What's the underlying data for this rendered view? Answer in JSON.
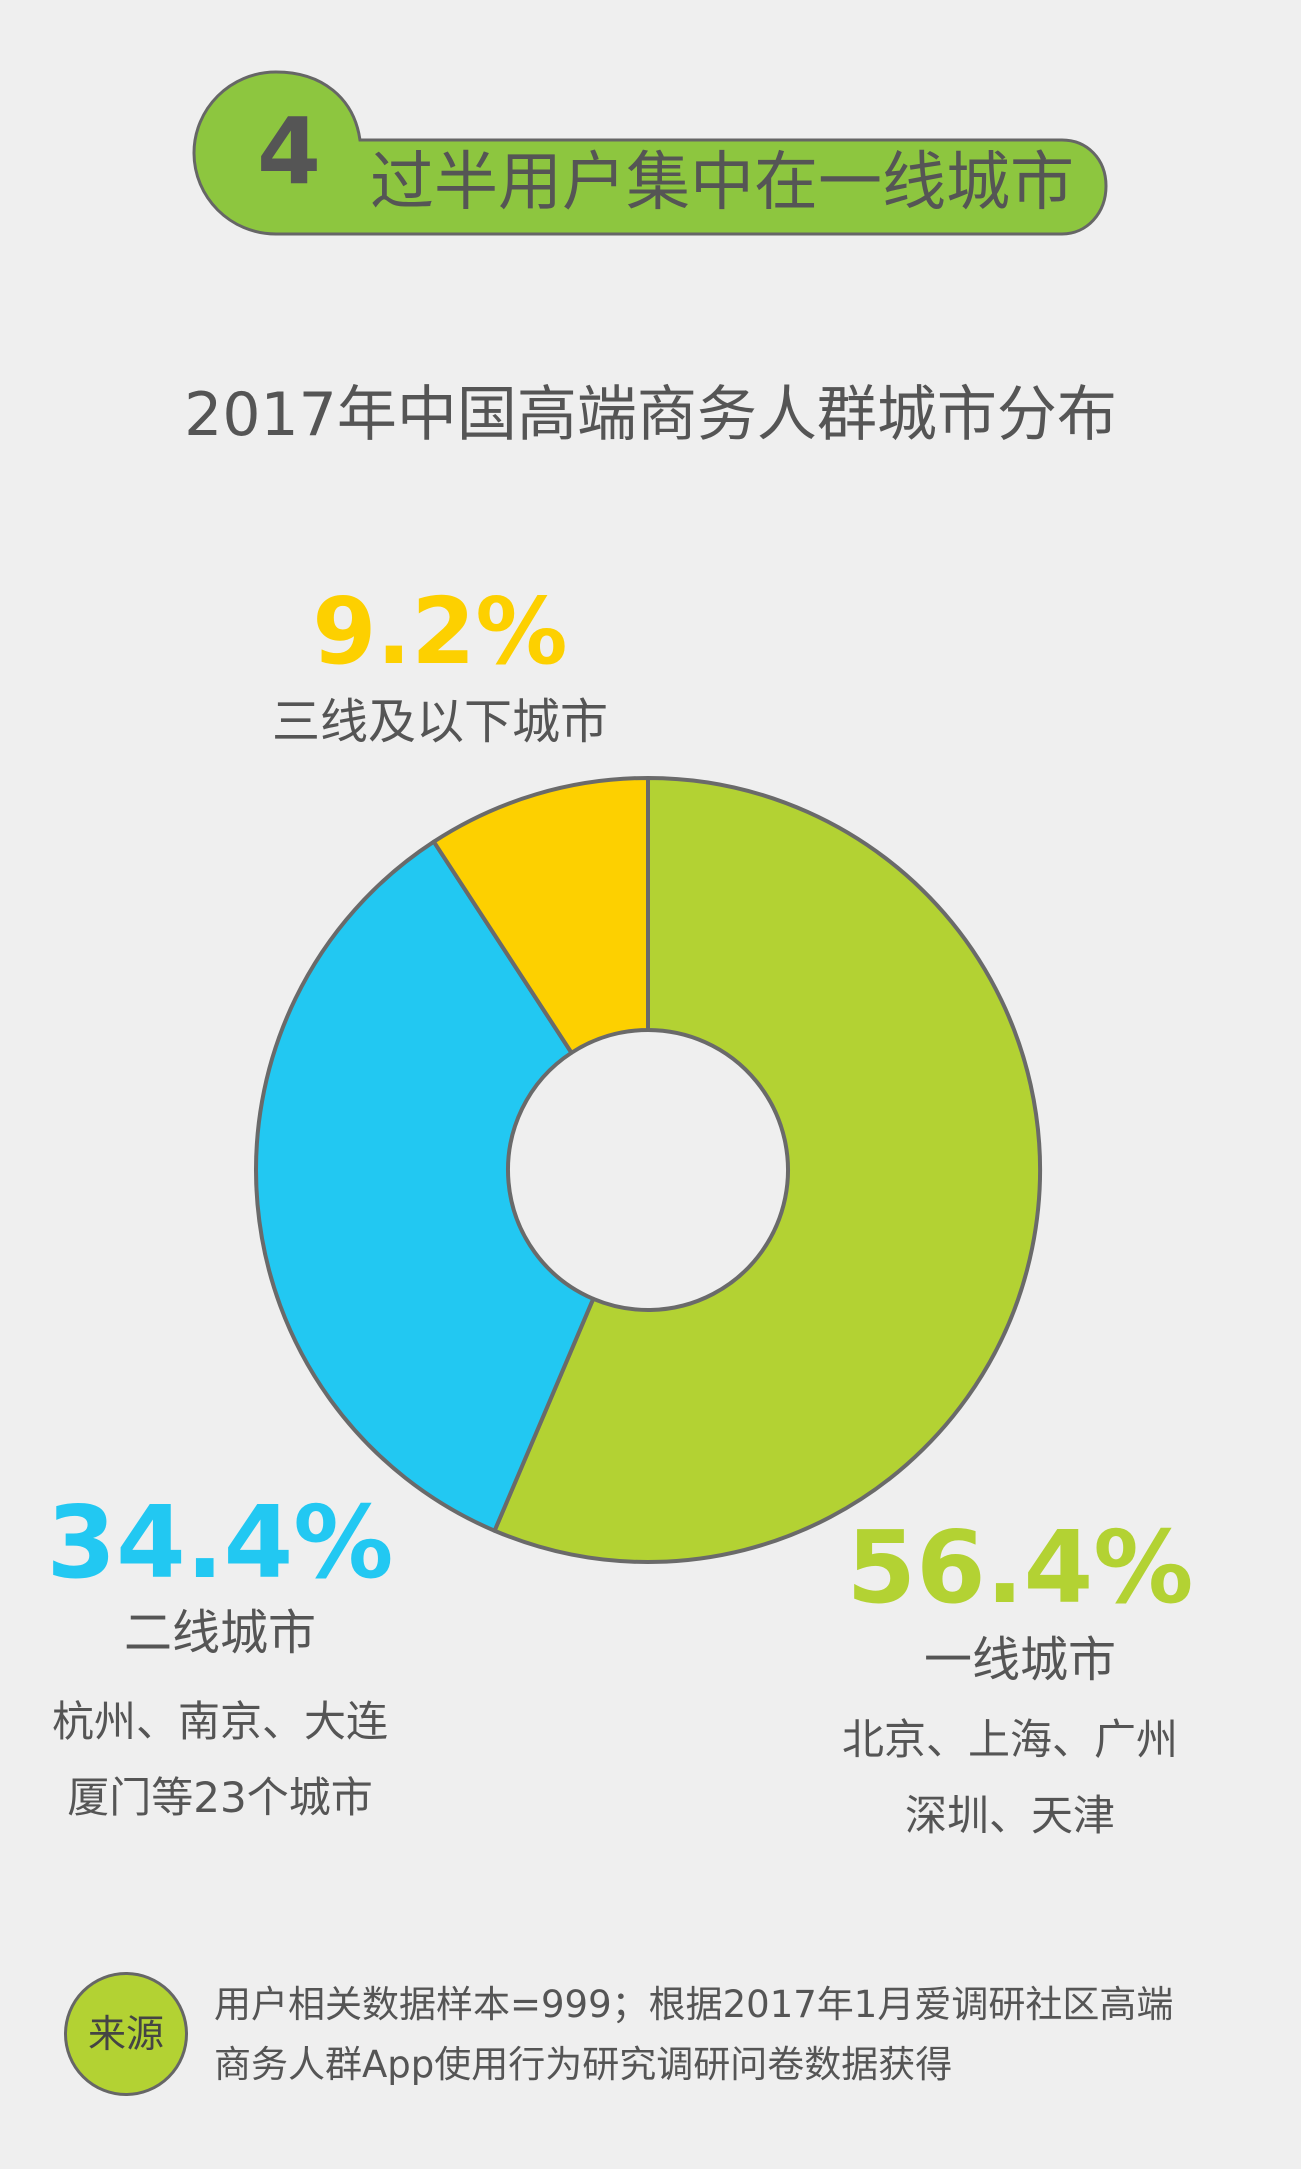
{
  "header": {
    "number": "4",
    "title": "过半用户集中在一线城市"
  },
  "colors": {
    "tier1": "#b3d233",
    "tier2": "#22c8f2",
    "tier3": "#fdd000",
    "banner": "#8dc63f",
    "outline": "#6a6a6a"
  },
  "chart_data": {
    "type": "pie",
    "variant": "donut",
    "title": "2017年中国高端商务人群城市分布",
    "slices": [
      {
        "value": 56.4,
        "percent_label": "56.4%",
        "category": "一线城市",
        "cities": [
          "北京、上海、广州",
          "深圳、天津"
        ],
        "color": "#b3d233"
      },
      {
        "value": 34.4,
        "percent_label": "34.4%",
        "category": "二线城市",
        "cities": [
          "杭州、南京、大连",
          "厦门等23个城市"
        ],
        "color": "#22c8f2"
      },
      {
        "value": 9.2,
        "percent_label": "9.2%",
        "category": "三线及以下城市",
        "cities": [],
        "color": "#fdd000"
      }
    ]
  },
  "source": {
    "badge": "来源",
    "lines": [
      "用户相关数据样本=999；根据2017年1月爱调研社区高端",
      "商务人群App使用行为研究调研问卷数据获得"
    ]
  }
}
